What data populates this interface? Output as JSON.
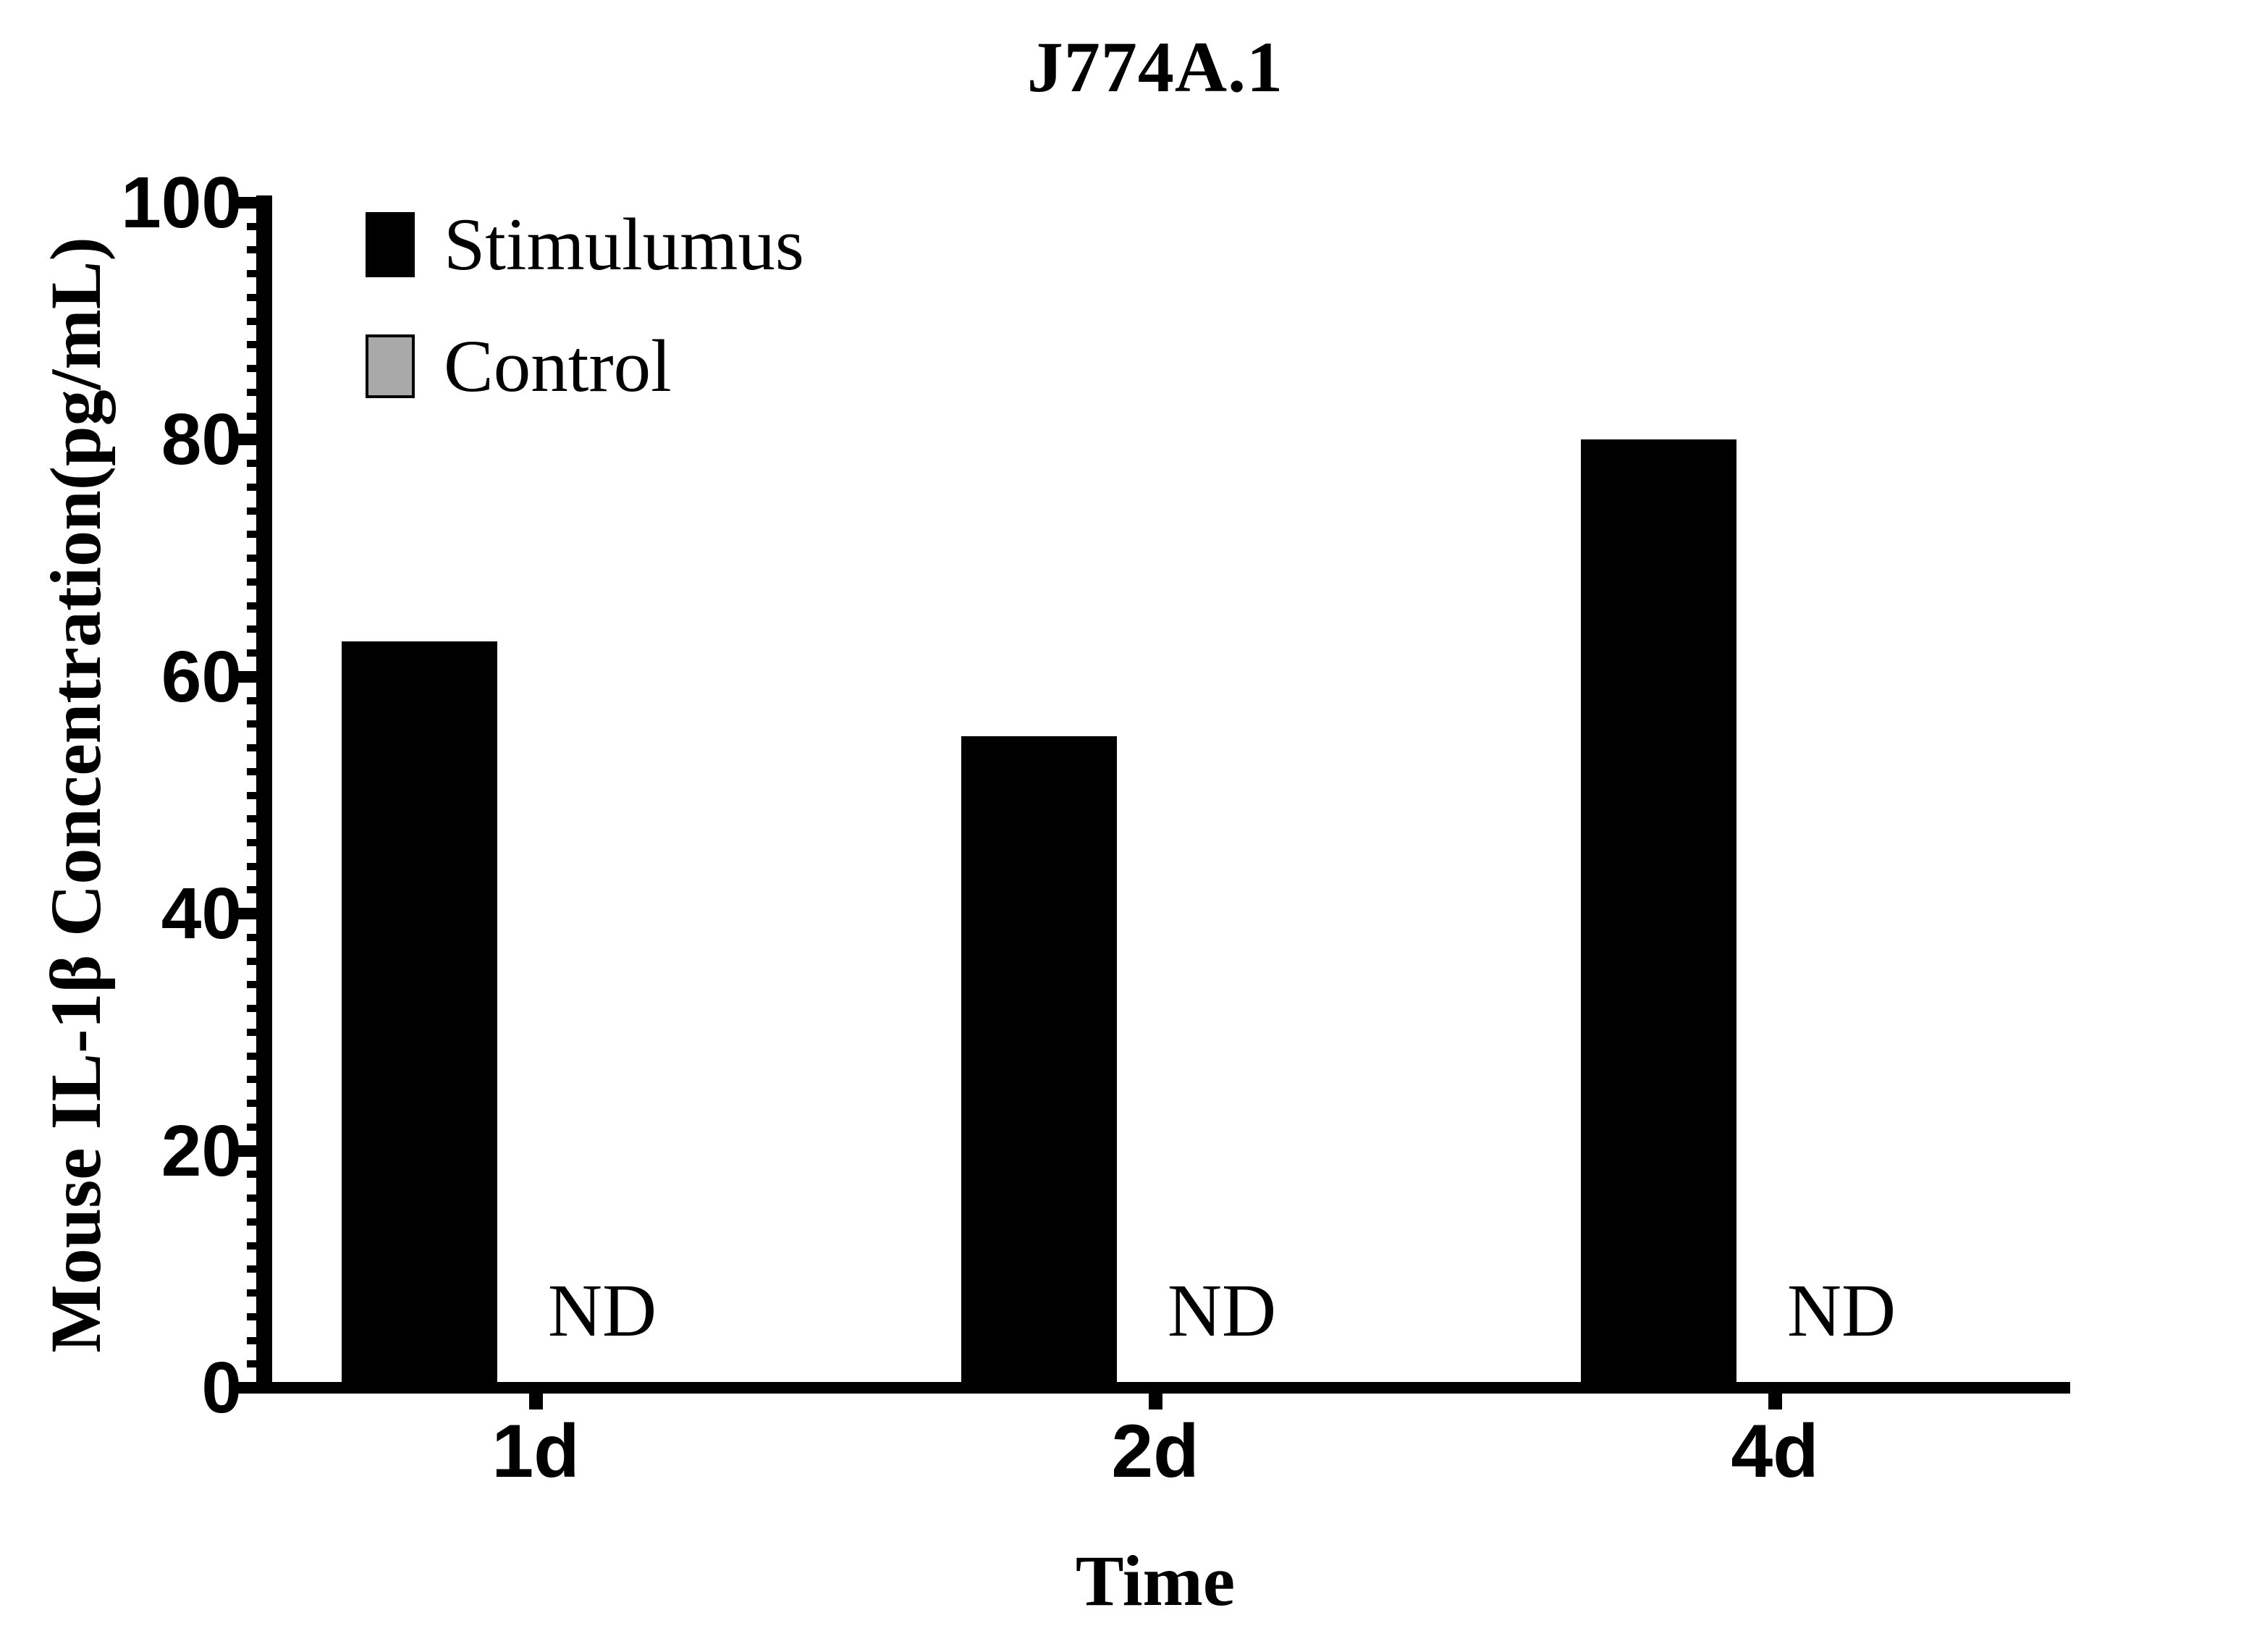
{
  "title": "J774A.1",
  "legend": {
    "position": "top-left-inside",
    "items": [
      {
        "label": "Stimulumus",
        "color": "#000000"
      },
      {
        "label": "Control",
        "color": "#a9a9a9"
      }
    ]
  },
  "chart_data": {
    "type": "bar",
    "title": "J774A.1",
    "categories": [
      "1d",
      "2d",
      "4d"
    ],
    "series": [
      {
        "name": "Stimulumus",
        "color": "#000000",
        "values": [
          63,
          55,
          80
        ]
      },
      {
        "name": "Control",
        "color": "#a9a9a9",
        "values": [
          0,
          0,
          0
        ],
        "shown_as": "ND"
      }
    ],
    "nd_label": "ND",
    "xlabel": "Time",
    "ylabel": "Mouse IL-1β Concentration(pg/mL)",
    "ylim": [
      0,
      100
    ],
    "ytick_major_step": 20,
    "ytick_minor_step": 2,
    "ytick_labels": [
      "0",
      "20",
      "40",
      "60",
      "80",
      "100"
    ],
    "grid": false,
    "background": "#ffffff",
    "axis_color": "#000000"
  }
}
